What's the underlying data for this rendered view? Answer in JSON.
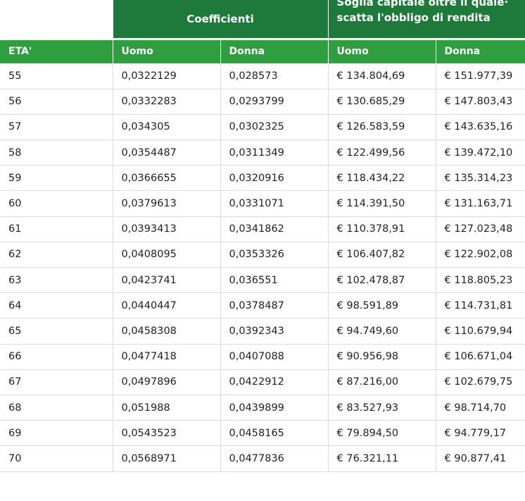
{
  "header": {
    "coefficients": "Coefficienti",
    "threshold": "Soglia capitale oltre il quale· scatta l'obbligo di rendita"
  },
  "columns": [
    "ETA'",
    "Uomo",
    "Donna",
    "Uomo",
    "Donna"
  ],
  "rows": [
    [
      "55",
      "0,0322129",
      "0,028573",
      "€ 134.804,69",
      "€ 151.977,39"
    ],
    [
      "56",
      "0,0332283",
      "0,0293799",
      "€ 130.685,29",
      "€ 147.803,43"
    ],
    [
      "57",
      "0,034305",
      "0,0302325",
      "€ 126.583,59",
      "€ 143.635,16"
    ],
    [
      "58",
      "0,0354487",
      "0,0311349",
      "€ 122.499,56",
      "€ 139.472,10"
    ],
    [
      "59",
      "0,0366655",
      "0,0320916",
      "€ 118.434,22",
      "€ 135.314,23"
    ],
    [
      "60",
      "0,0379613",
      "0,0331071",
      "€ 114.391,50",
      "€ 131.163,71"
    ],
    [
      "61",
      "0,0393413",
      "0,0341862",
      "€ 110.378,91",
      "€ 127.023,48"
    ],
    [
      "62",
      "0,0408095",
      "0,0353326",
      "€ 106.407,82",
      "€ 122.902,08"
    ],
    [
      "63",
      "0,0423741",
      "0,036551",
      "€ 102.478,87",
      "€ 118.805,23"
    ],
    [
      "64",
      "0,0440447",
      "0,0378487",
      "€ 98.591,89",
      "€ 114.731,81"
    ],
    [
      "65",
      "0,0458308",
      "0,0392343",
      "€ 94.749,60",
      "€ 110.679,94"
    ],
    [
      "66",
      "0,0477418",
      "0,0407088",
      "€ 90.956,98",
      "€ 106.671,04"
    ],
    [
      "67",
      "0,0497896",
      "0,0422912",
      "€ 87.216,00",
      "€ 102.679,75"
    ],
    [
      "68",
      "0,051988",
      "0,0439899",
      "€ 83.527,93",
      "€ 98.714,70"
    ],
    [
      "69",
      "0,0543523",
      "0,0458165",
      "€ 79.894,50",
      "€ 94.779,17"
    ],
    [
      "70",
      "0,0568971",
      "0,0477836",
      "€ 76.321,11",
      "€ 90.877,41"
    ]
  ],
  "colors": {
    "header_dark": "#1e7a3b",
    "header_light": "#2e9e3f"
  }
}
